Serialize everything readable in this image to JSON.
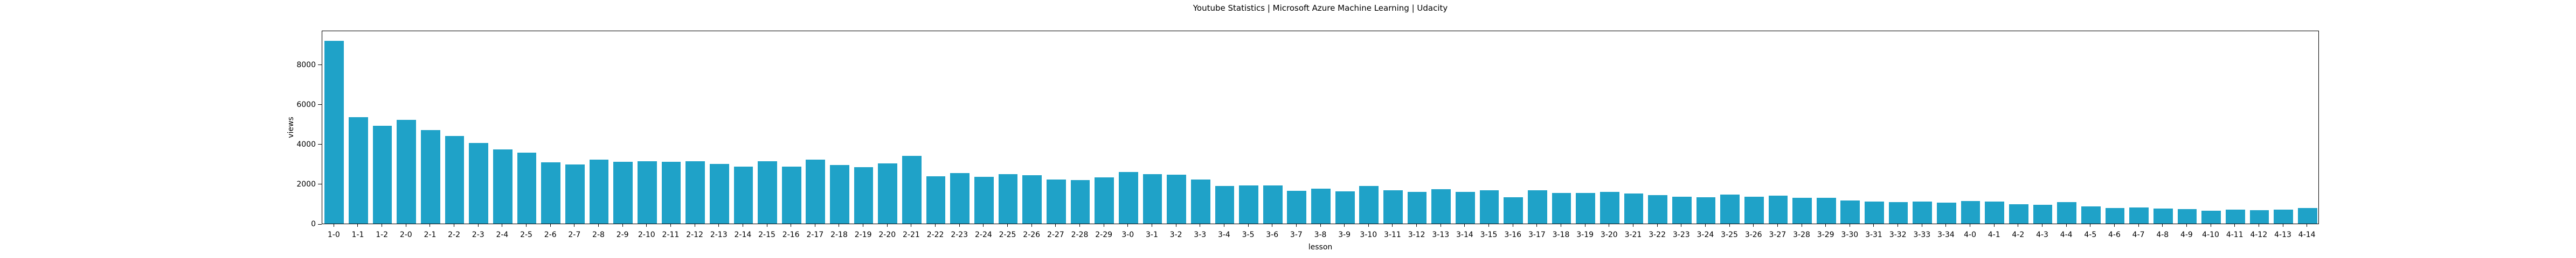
{
  "chart_data": {
    "type": "bar",
    "title": "Youtube Statistics | Microsoft Azure Machine Learning | Udacity",
    "xlabel": "lesson",
    "ylabel": "views",
    "categories": [
      "1-0",
      "1-1",
      "1-2",
      "2-0",
      "2-1",
      "2-2",
      "2-3",
      "2-4",
      "2-5",
      "2-6",
      "2-7",
      "2-8",
      "2-9",
      "2-10",
      "2-11",
      "2-12",
      "2-13",
      "2-14",
      "2-15",
      "2-16",
      "2-17",
      "2-18",
      "2-19",
      "2-20",
      "2-21",
      "2-22",
      "2-23",
      "2-24",
      "2-25",
      "2-26",
      "2-27",
      "2-28",
      "2-29",
      "3-0",
      "3-1",
      "3-2",
      "3-3",
      "3-4",
      "3-5",
      "3-6",
      "3-7",
      "3-8",
      "3-9",
      "3-10",
      "3-11",
      "3-12",
      "3-13",
      "3-14",
      "3-15",
      "3-16",
      "3-17",
      "3-18",
      "3-19",
      "3-20",
      "3-21",
      "3-22",
      "3-23",
      "3-24",
      "3-25",
      "3-26",
      "3-27",
      "3-28",
      "3-29",
      "3-30",
      "3-31",
      "3-32",
      "3-33",
      "3-34",
      "4-0",
      "4-1",
      "4-2",
      "4-3",
      "4-4",
      "4-5",
      "4-6",
      "4-7",
      "4-8",
      "4-9",
      "4-10",
      "4-11",
      "4-12",
      "4-13",
      "4-14"
    ],
    "values": [
      9220,
      5370,
      4940,
      5240,
      4720,
      4420,
      4080,
      3750,
      3590,
      3100,
      2990,
      3220,
      3130,
      3160,
      3130,
      3150,
      3020,
      2870,
      3160,
      2870,
      3240,
      2960,
      2840,
      3050,
      3430,
      2390,
      2540,
      2360,
      2500,
      2450,
      2220,
      2210,
      2330,
      2620,
      2490,
      2460,
      2230,
      1910,
      1920,
      1940,
      1660,
      1760,
      1640,
      1890,
      1680,
      1610,
      1730,
      1610,
      1690,
      1340,
      1680,
      1550,
      1540,
      1610,
      1530,
      1440,
      1370,
      1340,
      1480,
      1350,
      1410,
      1300,
      1310,
      1180,
      1110,
      1090,
      1110,
      1050,
      1140,
      1110,
      990,
      960,
      1090,
      860,
      800,
      820,
      760,
      720,
      650,
      710,
      670,
      710,
      780
    ],
    "yticks": [
      0,
      2000,
      4000,
      6000,
      8000
    ],
    "ylim": [
      0,
      9720
    ],
    "grid": false,
    "legend_position": "none",
    "bar_color": "#1fa2c8",
    "background_color": "#ffffff"
  }
}
